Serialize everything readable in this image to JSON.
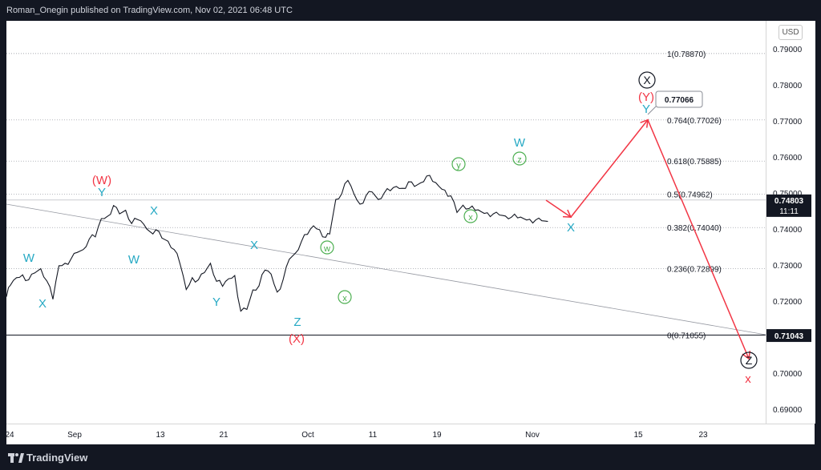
{
  "header": {
    "publish_text": "Roman_Onegin published on TradingView.com, Nov 02, 2021 06:48 UTC"
  },
  "footer": {
    "brand": "TradingView"
  },
  "price_axis": {
    "currency": "USD",
    "ticks": [
      "0.79000",
      "0.78000",
      "0.77000",
      "0.76000",
      "0.75000",
      "0.74000",
      "0.73000",
      "0.72000",
      "0.71000",
      "0.70000",
      "0.69000"
    ],
    "last_price": "0.74803",
    "countdown": "11:11",
    "level_tag": "0.71043"
  },
  "time_axis": {
    "ticks": [
      "24",
      "Sep",
      "13",
      "21",
      "Oct",
      "11",
      "19",
      "Nov",
      "15",
      "23"
    ]
  },
  "colors": {
    "red": "#f23645",
    "teal": "#26a9c4",
    "green": "#4caf50",
    "dark": "#131722",
    "grid": "#9598a1"
  },
  "chart_data": {
    "type": "line",
    "title": "",
    "xlabel": "",
    "ylabel": "",
    "ylim": [
      0.685,
      0.7955
    ],
    "fib_levels": [
      {
        "label": "1(0.78870)",
        "value": 0.7887
      },
      {
        "label": "0.764(0.77026)",
        "value": 0.77026
      },
      {
        "label": "0.618(0.75885)",
        "value": 0.75885
      },
      {
        "label": "0.5(0.74962)",
        "value": 0.74962
      },
      {
        "label": "0.382(0.74040)",
        "value": 0.7404
      },
      {
        "label": "0.236(0.72899)",
        "value": 0.72899
      },
      {
        "label": "0(0.71055)",
        "value": 0.71055
      }
    ],
    "callout": "0.77066",
    "series": [
      {
        "x": [
          0,
          2,
          5,
          8,
          11,
          14,
          17,
          20,
          23,
          26,
          29,
          32,
          35,
          38,
          41,
          44,
          47,
          50,
          53,
          56,
          59,
          62,
          65,
          68,
          71,
          74,
          77,
          80,
          83,
          86,
          89,
          92,
          95,
          98,
          101,
          104,
          107,
          110,
          113,
          116,
          119,
          122,
          125,
          128,
          131,
          134,
          137,
          140,
          143,
          146,
          149,
          152,
          155,
          158,
          160,
          163,
          166,
          169,
          172,
          175,
          178,
          181,
          184,
          187,
          190,
          193,
          196,
          199,
          202,
          205,
          208,
          211,
          214,
          217,
          220,
          223,
          226,
          229,
          232,
          235,
          238,
          241,
          244,
          247,
          250,
          253,
          256,
          259,
          262,
          265,
          268
        ],
        "y": [
          0.7212,
          0.7244,
          0.7265,
          0.7273,
          0.7259,
          0.7278,
          0.729,
          0.7256,
          0.7205,
          0.7298,
          0.7305,
          0.7317,
          0.7335,
          0.7343,
          0.7372,
          0.7378,
          0.7429,
          0.7435,
          0.7465,
          0.7442,
          0.7452,
          0.7415,
          0.7426,
          0.7413,
          0.7393,
          0.7398,
          0.7375,
          0.7366,
          0.7343,
          0.7302,
          0.7232,
          0.7265,
          0.7259,
          0.7279,
          0.7305,
          0.7255,
          0.7241,
          0.7262,
          0.7271,
          0.7172,
          0.7177,
          0.7231,
          0.7242,
          0.7286,
          0.7275,
          0.7225,
          0.726,
          0.7316,
          0.7333,
          0.7365,
          0.7385,
          0.7409,
          0.7398,
          0.7377,
          0.7386,
          0.7482,
          0.7498,
          0.7535,
          0.7498,
          0.7469,
          0.7493,
          0.7503,
          0.7482,
          0.75,
          0.7506,
          0.7518,
          0.7513,
          0.7531,
          0.7518,
          0.7528,
          0.7547,
          0.7532,
          0.7519,
          0.7508,
          0.7492,
          0.7446,
          0.7466,
          0.7457,
          0.7452,
          0.7448,
          0.7445,
          0.7442,
          0.7439,
          0.7436,
          0.7433,
          0.7431,
          0.7429,
          0.7427,
          0.7425,
          0.7423,
          0.7421
        ],
        "x_comment_unused": ""
      }
    ],
    "projection": [
      {
        "from": "Nov 01",
        "to": "Nov 05",
        "y_from": 0.748,
        "y_to": 0.7433
      },
      {
        "from": "Nov 05",
        "to": "Nov 17",
        "y_from": 0.7433,
        "y_to": 0.7703
      },
      {
        "from": "Nov 17",
        "to": "Nov 26",
        "y_from": 0.7703,
        "y_to": 0.704
      }
    ],
    "annotations": [
      {
        "text": "(W)",
        "color": "#f23645"
      },
      {
        "text": "Y",
        "color": "#26a9c4"
      },
      {
        "text": "W",
        "color": "#26a9c4"
      },
      {
        "text": "X",
        "color": "#26a9c4"
      },
      {
        "text": "X",
        "color": "#26a9c4"
      },
      {
        "text": "W",
        "color": "#26a9c4"
      },
      {
        "text": "Y",
        "color": "#26a9c4"
      },
      {
        "text": "X",
        "color": "#26a9c4"
      },
      {
        "text": "Z",
        "color": "#26a9c4"
      },
      {
        "text": "(X)",
        "color": "#f23645"
      },
      {
        "text": "w",
        "color": "#4caf50"
      },
      {
        "text": "x",
        "color": "#4caf50"
      },
      {
        "text": "y",
        "color": "#4caf50"
      },
      {
        "text": "x",
        "color": "#4caf50"
      },
      {
        "text": "z",
        "color": "#4caf50"
      },
      {
        "text": "W",
        "color": "#26a9c4"
      },
      {
        "text": "X",
        "color": "#26a9c4"
      },
      {
        "text": "X",
        "color": "#131722"
      },
      {
        "text": "(Y)",
        "color": "#f23645"
      },
      {
        "text": "Y",
        "color": "#26a9c4"
      },
      {
        "text": "Z",
        "color": "#131722"
      },
      {
        "text": "x",
        "color": "#f23645"
      }
    ]
  }
}
